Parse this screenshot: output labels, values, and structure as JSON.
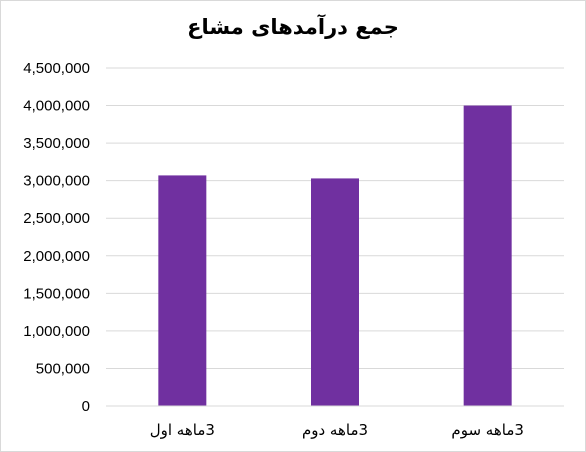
{
  "chart_data": {
    "type": "bar",
    "title": "جمع درآمدهای مشاع",
    "categories": [
      "3ماهه اول",
      "3ماهه دوم",
      "3ماهه سوم"
    ],
    "values": [
      3070000,
      3030000,
      4000000
    ],
    "ylim": [
      0,
      4500000
    ],
    "yticks": [
      0,
      500000,
      1000000,
      1500000,
      2000000,
      2500000,
      3000000,
      3500000,
      4000000,
      4500000
    ],
    "ytick_labels": [
      "0",
      "500,000",
      "1,000,000",
      "1,500,000",
      "2,000,000",
      "2,500,000",
      "3,000,000",
      "3,500,000",
      "4,000,000",
      "4,500,000"
    ],
    "grid": true,
    "legend": "none",
    "bar_color": "#7030a0",
    "grid_color": "#d9d9d9"
  }
}
